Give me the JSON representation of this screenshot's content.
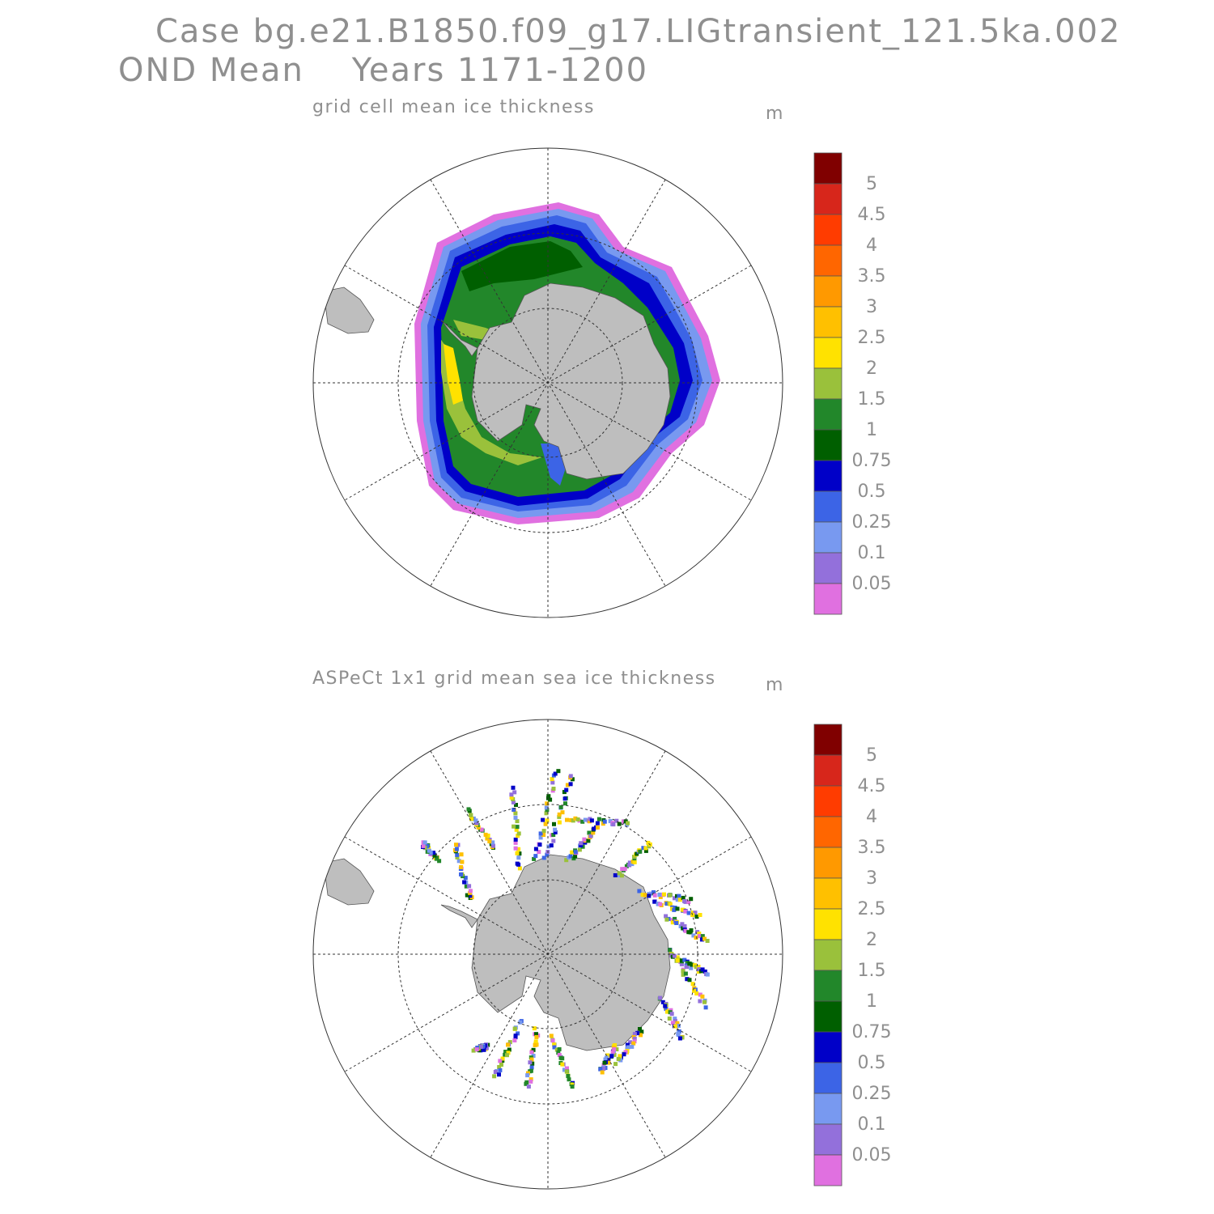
{
  "header": {
    "case_line": "Case bg.e21.B1850.f09_g17.LIGtransient_121.5ka.002",
    "period_line": "OND Mean    Years 1171-1200"
  },
  "panels": [
    {
      "title": "grid cell mean ice thickness",
      "unit": "m"
    },
    {
      "title": "ASPeCt 1x1 grid mean sea ice thickness",
      "unit": "m"
    }
  ],
  "colorbar": {
    "labels": [
      "5",
      "4.5",
      "4",
      "3.5",
      "3",
      "2.5",
      "2",
      "1.5",
      "1",
      "0.75",
      "0.5",
      "0.25",
      "0.1",
      "0.05"
    ],
    "colors": [
      "#800000",
      "#d7261b",
      "#ff3c00",
      "#ff6600",
      "#ff9900",
      "#ffc000",
      "#ffe200",
      "#9ac13b",
      "#22872a",
      "#005f00",
      "#0000c8",
      "#3c64e6",
      "#7899f0",
      "#9370db",
      "#e070e0"
    ]
  },
  "map_colors": {
    "land": "#bebebe",
    "ocean": "#ffffff",
    "grid": "#333333"
  }
}
